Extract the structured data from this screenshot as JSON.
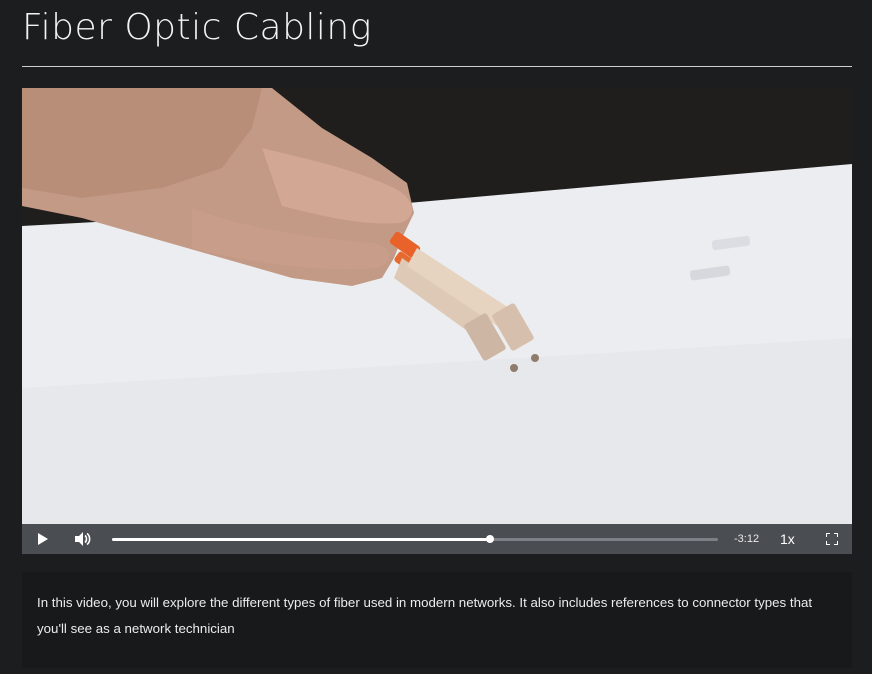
{
  "page": {
    "title": "Fiber Optic Cabling"
  },
  "video": {
    "controls": {
      "play_icon": "play-icon",
      "volume_icon": "volume-icon",
      "progress_fraction": 0.623,
      "time_remaining": "-3:12",
      "playback_speed": "1x",
      "fullscreen_icon": "fullscreen-icon"
    }
  },
  "description": {
    "text": "In this video, you will explore the different types of fiber used in modern networks. It also includes references to connector types that you'll see as a network technician"
  },
  "colors": {
    "background": "#1c1d1f",
    "control_bar": "#4a4d52",
    "description_bg": "#18191b"
  }
}
